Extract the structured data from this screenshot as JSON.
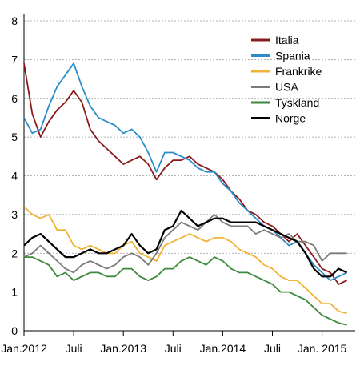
{
  "chart_data": {
    "type": "line",
    "title": "",
    "xlabel": "",
    "ylabel": "",
    "xlim": [
      "2012-01",
      "2015-05"
    ],
    "ylim": [
      0,
      8
    ],
    "yticks": [
      0,
      1,
      2,
      3,
      4,
      5,
      6,
      7,
      8
    ],
    "xticks": [
      {
        "label": "Jan.2012",
        "date": "2012-01"
      },
      {
        "label": "Juli",
        "date": "2012-07"
      },
      {
        "label": "Jan.2013",
        "date": "2013-01"
      },
      {
        "label": "Juli",
        "date": "2013-07"
      },
      {
        "label": "Jan.2014",
        "date": "2014-01"
      },
      {
        "label": "Juli",
        "date": "2014-07"
      },
      {
        "label": "Jan. 2015",
        "date": "2015-01"
      }
    ],
    "grid": "horizontal dashed",
    "legend_position": "top-right",
    "series": [
      {
        "name": "Italia",
        "color": "#8b1a1a",
        "points": [
          [
            "2012-01",
            6.9
          ],
          [
            "2012-02",
            5.6
          ],
          [
            "2012-03",
            5.0
          ],
          [
            "2012-04",
            5.4
          ],
          [
            "2012-05",
            5.7
          ],
          [
            "2012-06",
            5.9
          ],
          [
            "2012-07",
            6.2
          ],
          [
            "2012-08",
            5.9
          ],
          [
            "2012-09",
            5.2
          ],
          [
            "2012-10",
            4.9
          ],
          [
            "2012-11",
            4.7
          ],
          [
            "2012-12",
            4.5
          ],
          [
            "2013-01",
            4.3
          ],
          [
            "2013-02",
            4.4
          ],
          [
            "2013-03",
            4.5
          ],
          [
            "2013-04",
            4.3
          ],
          [
            "2013-05",
            3.9
          ],
          [
            "2013-06",
            4.2
          ],
          [
            "2013-07",
            4.4
          ],
          [
            "2013-08",
            4.4
          ],
          [
            "2013-09",
            4.5
          ],
          [
            "2013-10",
            4.3
          ],
          [
            "2013-11",
            4.2
          ],
          [
            "2013-12",
            4.1
          ],
          [
            "2014-01",
            3.9
          ],
          [
            "2014-02",
            3.6
          ],
          [
            "2014-03",
            3.4
          ],
          [
            "2014-04",
            3.1
          ],
          [
            "2014-05",
            3.0
          ],
          [
            "2014-06",
            2.8
          ],
          [
            "2014-07",
            2.7
          ],
          [
            "2014-08",
            2.5
          ],
          [
            "2014-09",
            2.3
          ],
          [
            "2014-10",
            2.5
          ],
          [
            "2014-11",
            2.2
          ],
          [
            "2014-12",
            1.9
          ],
          [
            "2015-01",
            1.6
          ],
          [
            "2015-02",
            1.5
          ],
          [
            "2015-03",
            1.2
          ],
          [
            "2015-04",
            1.3
          ]
        ]
      },
      {
        "name": "Spania",
        "color": "#2b8dc8",
        "points": [
          [
            "2012-01",
            5.5
          ],
          [
            "2012-02",
            5.1
          ],
          [
            "2012-03",
            5.2
          ],
          [
            "2012-04",
            5.8
          ],
          [
            "2012-05",
            6.3
          ],
          [
            "2012-06",
            6.6
          ],
          [
            "2012-07",
            6.9
          ],
          [
            "2012-08",
            6.3
          ],
          [
            "2012-09",
            5.8
          ],
          [
            "2012-10",
            5.5
          ],
          [
            "2012-11",
            5.4
          ],
          [
            "2012-12",
            5.3
          ],
          [
            "2013-01",
            5.1
          ],
          [
            "2013-02",
            5.2
          ],
          [
            "2013-03",
            5.0
          ],
          [
            "2013-04",
            4.6
          ],
          [
            "2013-05",
            4.1
          ],
          [
            "2013-06",
            4.6
          ],
          [
            "2013-07",
            4.6
          ],
          [
            "2013-08",
            4.5
          ],
          [
            "2013-09",
            4.4
          ],
          [
            "2013-10",
            4.2
          ],
          [
            "2013-11",
            4.1
          ],
          [
            "2013-12",
            4.1
          ],
          [
            "2014-01",
            3.8
          ],
          [
            "2014-02",
            3.6
          ],
          [
            "2014-03",
            3.3
          ],
          [
            "2014-04",
            3.1
          ],
          [
            "2014-05",
            2.9
          ],
          [
            "2014-06",
            2.7
          ],
          [
            "2014-07",
            2.6
          ],
          [
            "2014-08",
            2.4
          ],
          [
            "2014-09",
            2.2
          ],
          [
            "2014-10",
            2.3
          ],
          [
            "2014-11",
            2.0
          ],
          [
            "2014-12",
            1.7
          ],
          [
            "2015-01",
            1.5
          ],
          [
            "2015-02",
            1.3
          ],
          [
            "2015-03",
            1.4
          ],
          [
            "2015-04",
            1.5
          ]
        ]
      },
      {
        "name": "Frankrike",
        "color": "#f2b233",
        "points": [
          [
            "2012-01",
            3.2
          ],
          [
            "2012-02",
            3.0
          ],
          [
            "2012-03",
            2.9
          ],
          [
            "2012-04",
            3.0
          ],
          [
            "2012-05",
            2.6
          ],
          [
            "2012-06",
            2.6
          ],
          [
            "2012-07",
            2.2
          ],
          [
            "2012-08",
            2.1
          ],
          [
            "2012-09",
            2.2
          ],
          [
            "2012-10",
            2.1
          ],
          [
            "2012-11",
            2.0
          ],
          [
            "2012-12",
            2.0
          ],
          [
            "2013-01",
            2.2
          ],
          [
            "2013-02",
            2.3
          ],
          [
            "2013-03",
            2.0
          ],
          [
            "2013-04",
            1.9
          ],
          [
            "2013-05",
            1.8
          ],
          [
            "2013-06",
            2.2
          ],
          [
            "2013-07",
            2.3
          ],
          [
            "2013-08",
            2.4
          ],
          [
            "2013-09",
            2.5
          ],
          [
            "2013-10",
            2.4
          ],
          [
            "2013-11",
            2.3
          ],
          [
            "2013-12",
            2.4
          ],
          [
            "2014-01",
            2.4
          ],
          [
            "2014-02",
            2.3
          ],
          [
            "2014-03",
            2.1
          ],
          [
            "2014-04",
            2.0
          ],
          [
            "2014-05",
            1.9
          ],
          [
            "2014-06",
            1.7
          ],
          [
            "2014-07",
            1.6
          ],
          [
            "2014-08",
            1.4
          ],
          [
            "2014-09",
            1.3
          ],
          [
            "2014-10",
            1.3
          ],
          [
            "2014-11",
            1.1
          ],
          [
            "2014-12",
            0.9
          ],
          [
            "2015-01",
            0.7
          ],
          [
            "2015-02",
            0.7
          ],
          [
            "2015-03",
            0.5
          ],
          [
            "2015-04",
            0.45
          ]
        ]
      },
      {
        "name": "USA",
        "color": "#7a7a7a",
        "points": [
          [
            "2012-01",
            1.9
          ],
          [
            "2012-02",
            2.0
          ],
          [
            "2012-03",
            2.2
          ],
          [
            "2012-04",
            2.0
          ],
          [
            "2012-05",
            1.8
          ],
          [
            "2012-06",
            1.6
          ],
          [
            "2012-07",
            1.5
          ],
          [
            "2012-08",
            1.7
          ],
          [
            "2012-09",
            1.8
          ],
          [
            "2012-10",
            1.7
          ],
          [
            "2012-11",
            1.6
          ],
          [
            "2012-12",
            1.7
          ],
          [
            "2013-01",
            1.9
          ],
          [
            "2013-02",
            2.0
          ],
          [
            "2013-03",
            1.9
          ],
          [
            "2013-04",
            1.7
          ],
          [
            "2013-05",
            2.0
          ],
          [
            "2013-06",
            2.4
          ],
          [
            "2013-07",
            2.6
          ],
          [
            "2013-08",
            2.8
          ],
          [
            "2013-09",
            2.7
          ],
          [
            "2013-10",
            2.6
          ],
          [
            "2013-11",
            2.8
          ],
          [
            "2013-12",
            3.0
          ],
          [
            "2014-01",
            2.8
          ],
          [
            "2014-02",
            2.7
          ],
          [
            "2014-03",
            2.7
          ],
          [
            "2014-04",
            2.7
          ],
          [
            "2014-05",
            2.5
          ],
          [
            "2014-06",
            2.6
          ],
          [
            "2014-07",
            2.5
          ],
          [
            "2014-08",
            2.4
          ],
          [
            "2014-09",
            2.5
          ],
          [
            "2014-10",
            2.3
          ],
          [
            "2014-11",
            2.3
          ],
          [
            "2014-12",
            2.2
          ],
          [
            "2015-01",
            1.8
          ],
          [
            "2015-02",
            2.0
          ],
          [
            "2015-03",
            2.0
          ],
          [
            "2015-04",
            2.0
          ]
        ]
      },
      {
        "name": "Tyskland",
        "color": "#3d8a3d",
        "points": [
          [
            "2012-01",
            1.9
          ],
          [
            "2012-02",
            1.9
          ],
          [
            "2012-03",
            1.8
          ],
          [
            "2012-04",
            1.7
          ],
          [
            "2012-05",
            1.4
          ],
          [
            "2012-06",
            1.5
          ],
          [
            "2012-07",
            1.3
          ],
          [
            "2012-08",
            1.4
          ],
          [
            "2012-09",
            1.5
          ],
          [
            "2012-10",
            1.5
          ],
          [
            "2012-11",
            1.4
          ],
          [
            "2012-12",
            1.4
          ],
          [
            "2013-01",
            1.6
          ],
          [
            "2013-02",
            1.6
          ],
          [
            "2013-03",
            1.4
          ],
          [
            "2013-04",
            1.3
          ],
          [
            "2013-05",
            1.4
          ],
          [
            "2013-06",
            1.6
          ],
          [
            "2013-07",
            1.6
          ],
          [
            "2013-08",
            1.8
          ],
          [
            "2013-09",
            1.9
          ],
          [
            "2013-10",
            1.8
          ],
          [
            "2013-11",
            1.7
          ],
          [
            "2013-12",
            1.9
          ],
          [
            "2014-01",
            1.8
          ],
          [
            "2014-02",
            1.6
          ],
          [
            "2014-03",
            1.5
          ],
          [
            "2014-04",
            1.5
          ],
          [
            "2014-05",
            1.4
          ],
          [
            "2014-06",
            1.3
          ],
          [
            "2014-07",
            1.2
          ],
          [
            "2014-08",
            1.0
          ],
          [
            "2014-09",
            1.0
          ],
          [
            "2014-10",
            0.9
          ],
          [
            "2014-11",
            0.8
          ],
          [
            "2014-12",
            0.6
          ],
          [
            "2015-01",
            0.4
          ],
          [
            "2015-02",
            0.3
          ],
          [
            "2015-03",
            0.2
          ],
          [
            "2015-04",
            0.15
          ]
        ]
      },
      {
        "name": "Norge",
        "color": "#000000",
        "points": [
          [
            "2012-01",
            2.2
          ],
          [
            "2012-02",
            2.4
          ],
          [
            "2012-03",
            2.5
          ],
          [
            "2012-04",
            2.3
          ],
          [
            "2012-05",
            2.1
          ],
          [
            "2012-06",
            1.9
          ],
          [
            "2012-07",
            1.9
          ],
          [
            "2012-08",
            2.0
          ],
          [
            "2012-09",
            2.1
          ],
          [
            "2012-10",
            2.0
          ],
          [
            "2012-11",
            2.0
          ],
          [
            "2012-12",
            2.1
          ],
          [
            "2013-01",
            2.2
          ],
          [
            "2013-02",
            2.5
          ],
          [
            "2013-03",
            2.2
          ],
          [
            "2013-04",
            2.0
          ],
          [
            "2013-05",
            2.1
          ],
          [
            "2013-06",
            2.6
          ],
          [
            "2013-07",
            2.7
          ],
          [
            "2013-08",
            3.1
          ],
          [
            "2013-09",
            2.9
          ],
          [
            "2013-10",
            2.7
          ],
          [
            "2013-11",
            2.8
          ],
          [
            "2013-12",
            2.9
          ],
          [
            "2014-01",
            2.9
          ],
          [
            "2014-02",
            2.8
          ],
          [
            "2014-03",
            2.8
          ],
          [
            "2014-04",
            2.8
          ],
          [
            "2014-05",
            2.8
          ],
          [
            "2014-06",
            2.7
          ],
          [
            "2014-07",
            2.6
          ],
          [
            "2014-08",
            2.5
          ],
          [
            "2014-09",
            2.4
          ],
          [
            "2014-10",
            2.3
          ],
          [
            "2014-11",
            2.0
          ],
          [
            "2014-12",
            1.6
          ],
          [
            "2015-01",
            1.4
          ],
          [
            "2015-02",
            1.4
          ],
          [
            "2015-03",
            1.6
          ],
          [
            "2015-04",
            1.5
          ]
        ]
      }
    ]
  }
}
